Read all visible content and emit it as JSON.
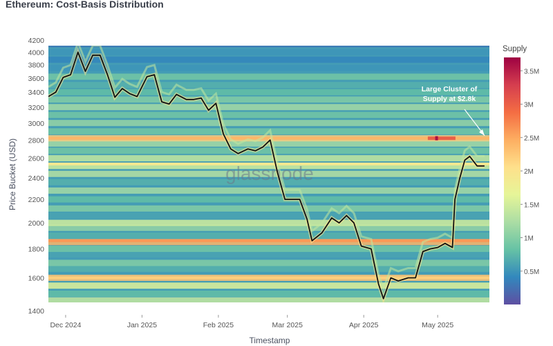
{
  "page": {
    "title": "Ethereum: Cost-Basis Distribution"
  },
  "chart_data": {
    "type": "heatmap",
    "title": "Ethereum: Cost-Basis Distribution",
    "xlabel": "Timestamp",
    "ylabel": "Price Bucket (USD)",
    "x_ticks": [
      "Dec 2024",
      "Jan 2025",
      "Feb 2025",
      "Mar 2025",
      "Apr 2025",
      "May 2025"
    ],
    "y_ticks": [
      1400,
      1600,
      1800,
      2000,
      2200,
      2400,
      2600,
      2800,
      3000,
      3200,
      3400,
      3600,
      3800,
      4000,
      4200
    ],
    "y_scale": "log",
    "ylim": [
      1400,
      4200
    ],
    "xlim": [
      "2024-11-24",
      "2025-05-22"
    ],
    "watermark": "glassnode",
    "colorbar": {
      "title": "Supply",
      "ticks": [
        "0.5M",
        "1M",
        "1.5M",
        "2M",
        "2.5M",
        "3M",
        "3.5M"
      ],
      "tick_values": [
        0.5,
        1,
        1.5,
        2,
        2.5,
        3,
        3.5
      ],
      "range": [
        0,
        3.7
      ],
      "unit": "M",
      "colors": [
        "#5e4fa2",
        "#3288bd",
        "#66c2a5",
        "#abdda4",
        "#e6f598",
        "#fee08b",
        "#fdae61",
        "#f46d43",
        "#d53e4f",
        "#9e0142"
      ]
    },
    "annotation": {
      "text": [
        "Large Cluster of",
        "Supply at $2.8k"
      ],
      "x": "2025-05-20",
      "y": 2800
    },
    "series": [
      {
        "type": "line",
        "color": "#111111",
        "points": [
          [
            "2024-11-24",
            3340
          ],
          [
            "2024-11-27",
            3400
          ],
          [
            "2024-11-30",
            3610
          ],
          [
            "2024-12-03",
            3650
          ],
          [
            "2024-12-06",
            4000
          ],
          [
            "2024-12-09",
            3700
          ],
          [
            "2024-12-12",
            3950
          ],
          [
            "2024-12-15",
            3950
          ],
          [
            "2024-12-18",
            3650
          ],
          [
            "2024-12-21",
            3330
          ],
          [
            "2024-12-24",
            3450
          ],
          [
            "2024-12-27",
            3380
          ],
          [
            "2024-12-30",
            3340
          ],
          [
            "2025-01-03",
            3620
          ],
          [
            "2025-01-06",
            3650
          ],
          [
            "2025-01-09",
            3270
          ],
          [
            "2025-01-12",
            3240
          ],
          [
            "2025-01-15",
            3370
          ],
          [
            "2025-01-19",
            3300
          ],
          [
            "2025-01-22",
            3300
          ],
          [
            "2025-01-25",
            3320
          ],
          [
            "2025-01-28",
            3160
          ],
          [
            "2025-01-31",
            3250
          ],
          [
            "2025-02-03",
            2870
          ],
          [
            "2025-02-06",
            2700
          ],
          [
            "2025-02-09",
            2650
          ],
          [
            "2025-02-13",
            2700
          ],
          [
            "2025-02-16",
            2680
          ],
          [
            "2025-02-19",
            2720
          ],
          [
            "2025-02-22",
            2800
          ],
          [
            "2025-02-25",
            2450
          ],
          [
            "2025-02-28",
            2200
          ],
          [
            "2025-03-03",
            2200
          ],
          [
            "2025-03-06",
            2200
          ],
          [
            "2025-03-09",
            2030
          ],
          [
            "2025-03-11",
            1860
          ],
          [
            "2025-03-15",
            1920
          ],
          [
            "2025-03-19",
            2040
          ],
          [
            "2025-03-22",
            2000
          ],
          [
            "2025-03-25",
            2060
          ],
          [
            "2025-03-28",
            2000
          ],
          [
            "2025-03-31",
            1820
          ],
          [
            "2025-04-04",
            1800
          ],
          [
            "2025-04-07",
            1560
          ],
          [
            "2025-04-09",
            1470
          ],
          [
            "2025-04-12",
            1600
          ],
          [
            "2025-04-15",
            1580
          ],
          [
            "2025-04-19",
            1600
          ],
          [
            "2025-04-22",
            1600
          ],
          [
            "2025-04-25",
            1780
          ],
          [
            "2025-04-28",
            1800
          ],
          [
            "2025-05-01",
            1810
          ],
          [
            "2025-05-04",
            1840
          ],
          [
            "2025-05-07",
            1810
          ],
          [
            "2025-05-08",
            2200
          ],
          [
            "2025-05-10",
            2400
          ],
          [
            "2025-05-12",
            2580
          ],
          [
            "2025-05-14",
            2620
          ],
          [
            "2025-05-17",
            2520
          ],
          [
            "2025-05-20",
            2520
          ]
        ]
      }
    ],
    "heatmap_bands": [
      {
        "price": 1460,
        "supply": 1.4
      },
      {
        "price": 1500,
        "supply": 0.8
      },
      {
        "price": 1550,
        "supply": 1.6
      },
      {
        "price": 1600,
        "supply": 2.3
      },
      {
        "price": 1660,
        "supply": 0.7
      },
      {
        "price": 1700,
        "supply": 1.0
      },
      {
        "price": 1760,
        "supply": 0.6
      },
      {
        "price": 1800,
        "supply": 0.9
      },
      {
        "price": 1850,
        "supply": 2.4
      },
      {
        "price": 1900,
        "supply": 0.7
      },
      {
        "price": 1960,
        "supply": 1.1
      },
      {
        "price": 2000,
        "supply": 1.5
      },
      {
        "price": 2060,
        "supply": 0.6
      },
      {
        "price": 2120,
        "supply": 1.0
      },
      {
        "price": 2200,
        "supply": 0.8
      },
      {
        "price": 2280,
        "supply": 1.2
      },
      {
        "price": 2360,
        "supply": 0.7
      },
      {
        "price": 2440,
        "supply": 1.3
      },
      {
        "price": 2520,
        "supply": 1.5
      },
      {
        "price": 2600,
        "supply": 1.4
      },
      {
        "price": 2680,
        "supply": 0.9
      },
      {
        "price": 2760,
        "supply": 1.2
      },
      {
        "price": 2820,
        "supply": 2.2
      },
      {
        "price": 2900,
        "supply": 0.9
      },
      {
        "price": 3000,
        "supply": 1.1
      },
      {
        "price": 3100,
        "supply": 0.9
      },
      {
        "price": 3200,
        "supply": 1.2
      },
      {
        "price": 3300,
        "supply": 1.0
      },
      {
        "price": 3400,
        "supply": 0.8
      },
      {
        "price": 3500,
        "supply": 0.7
      },
      {
        "price": 3620,
        "supply": 0.9
      },
      {
        "price": 3750,
        "supply": 0.5
      },
      {
        "price": 3880,
        "supply": 0.4
      },
      {
        "price": 4000,
        "supply": 0.5
      },
      {
        "price": 4130,
        "supply": 0.3
      }
    ]
  }
}
